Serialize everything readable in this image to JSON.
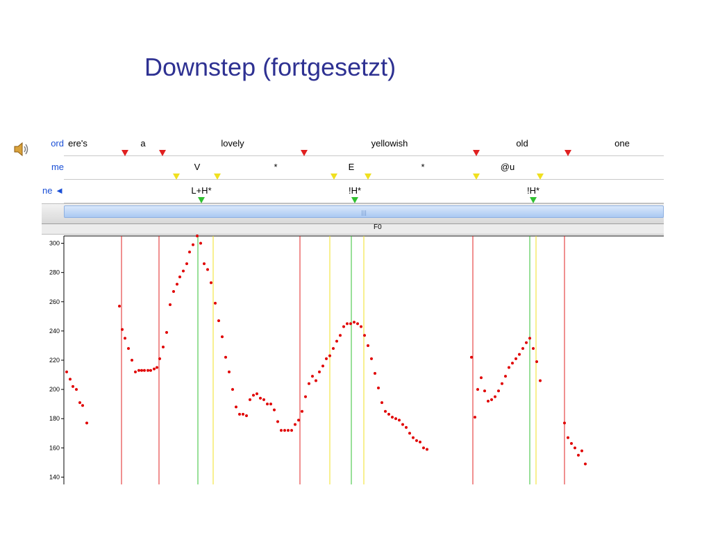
{
  "slide": {
    "title": "Downstep (fortgesetzt)"
  },
  "icons": {
    "speaker": "speaker-icon"
  },
  "tiers": [
    {
      "label": "ord",
      "items": [
        "ere's",
        "a",
        "lovely",
        "yellowish",
        "old",
        "one"
      ]
    },
    {
      "label": "me",
      "items": [
        "V",
        "*",
        "E",
        "*",
        "@u"
      ]
    },
    {
      "label": "ne ◄",
      "items": [
        "L+H*",
        "!H*",
        "!H*"
      ]
    }
  ],
  "colors": {
    "word_marker": "#e02020",
    "phone_marker": "#f0e020",
    "tone_marker": "#30c030",
    "points": "#e00000",
    "title": "#2e3192",
    "tier_label": "#1a4fd6"
  },
  "chart_data": {
    "type": "scatter",
    "title": "F0",
    "ylim": [
      135,
      305
    ],
    "y_ticks": [
      140,
      160,
      180,
      200,
      220,
      240,
      260,
      280,
      300
    ],
    "x_range": [
      0,
      864
    ],
    "vlines": {
      "red": [
        83,
        137,
        340,
        589,
        721
      ],
      "green": [
        193,
        414,
        671
      ],
      "yellow": [
        215,
        383,
        432,
        680
      ]
    },
    "series": [
      {
        "points": [
          [
            4,
            212
          ],
          [
            9,
            207
          ],
          [
            13,
            202
          ],
          [
            18,
            200
          ],
          [
            23,
            191
          ],
          [
            27,
            189
          ],
          [
            33,
            177
          ],
          [
            80,
            257
          ],
          [
            84,
            241
          ],
          [
            88,
            235
          ],
          [
            93,
            228
          ],
          [
            98,
            220
          ],
          [
            103,
            212
          ],
          [
            108,
            213
          ],
          [
            112,
            213
          ],
          [
            116,
            213
          ],
          [
            121,
            213
          ],
          [
            125,
            213
          ],
          [
            130,
            214
          ],
          [
            134,
            215
          ],
          [
            138,
            221
          ],
          [
            143,
            229
          ],
          [
            148,
            239
          ],
          [
            153,
            258
          ],
          [
            158,
            267
          ],
          [
            163,
            272
          ],
          [
            167,
            277
          ],
          [
            172,
            281
          ],
          [
            177,
            286
          ],
          [
            181,
            294
          ],
          [
            186,
            299
          ],
          [
            192,
            305
          ],
          [
            197,
            300
          ],
          [
            202,
            286
          ],
          [
            207,
            282
          ],
          [
            212,
            273
          ],
          [
            218,
            259
          ],
          [
            223,
            247
          ],
          [
            228,
            236
          ],
          [
            233,
            222
          ],
          [
            238,
            212
          ],
          [
            243,
            200
          ],
          [
            248,
            188
          ],
          [
            253,
            183
          ],
          [
            258,
            183
          ],
          [
            263,
            182
          ],
          [
            268,
            193
          ],
          [
            273,
            196
          ],
          [
            278,
            197
          ],
          [
            283,
            194
          ],
          [
            288,
            193
          ],
          [
            293,
            190
          ],
          [
            298,
            190
          ],
          [
            303,
            186
          ],
          [
            308,
            178
          ],
          [
            313,
            172
          ],
          [
            318,
            172
          ],
          [
            323,
            172
          ],
          [
            328,
            172
          ],
          [
            333,
            176
          ],
          [
            338,
            179
          ],
          [
            343,
            185
          ],
          [
            348,
            195
          ],
          [
            353,
            204
          ],
          [
            358,
            209
          ],
          [
            363,
            206
          ],
          [
            368,
            212
          ],
          [
            373,
            216
          ],
          [
            378,
            221
          ],
          [
            383,
            223
          ],
          [
            388,
            228
          ],
          [
            393,
            233
          ],
          [
            398,
            237
          ],
          [
            403,
            243
          ],
          [
            408,
            245
          ],
          [
            413,
            245
          ],
          [
            418,
            246
          ],
          [
            423,
            245
          ],
          [
            428,
            243
          ],
          [
            433,
            237
          ],
          [
            438,
            230
          ],
          [
            443,
            221
          ],
          [
            448,
            211
          ],
          [
            453,
            201
          ],
          [
            458,
            191
          ],
          [
            463,
            185
          ],
          [
            468,
            183
          ],
          [
            473,
            181
          ],
          [
            478,
            180
          ],
          [
            483,
            179
          ],
          [
            488,
            176
          ],
          [
            493,
            174
          ],
          [
            498,
            170
          ],
          [
            503,
            167
          ],
          [
            508,
            165
          ],
          [
            513,
            164
          ],
          [
            518,
            160
          ],
          [
            523,
            159
          ],
          [
            587,
            222
          ],
          [
            592,
            181
          ],
          [
            596,
            200
          ],
          [
            601,
            208
          ],
          [
            606,
            199
          ],
          [
            611,
            192
          ],
          [
            616,
            193
          ],
          [
            621,
            195
          ],
          [
            626,
            199
          ],
          [
            631,
            204
          ],
          [
            636,
            209
          ],
          [
            641,
            215
          ],
          [
            646,
            218
          ],
          [
            651,
            221
          ],
          [
            656,
            224
          ],
          [
            661,
            228
          ],
          [
            666,
            232
          ],
          [
            671,
            235
          ],
          [
            676,
            228
          ],
          [
            681,
            219
          ],
          [
            686,
            206
          ],
          [
            721,
            177
          ],
          [
            726,
            167
          ],
          [
            731,
            163
          ],
          [
            736,
            160
          ],
          [
            741,
            155
          ],
          [
            746,
            158
          ],
          [
            751,
            149
          ]
        ]
      }
    ]
  }
}
